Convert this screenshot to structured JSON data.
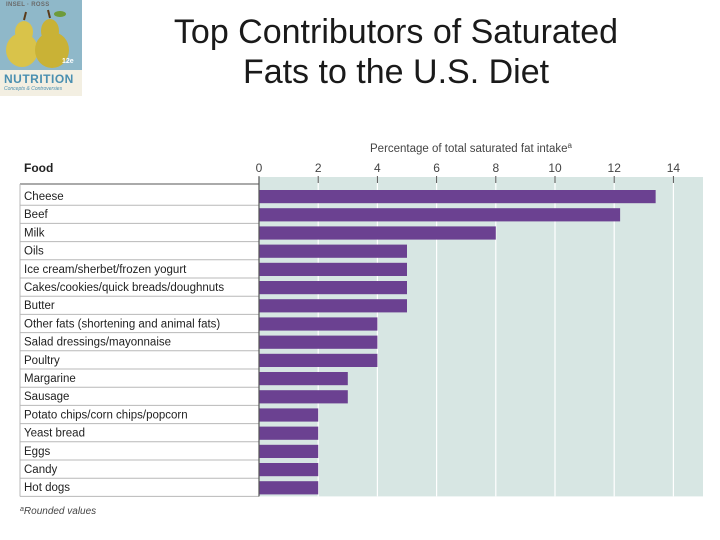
{
  "slide": {
    "title_line1": "Top Contributors of Saturated",
    "title_line2": "Fats to the U.S. Diet"
  },
  "logo": {
    "top_text": "INSEL · ROSS",
    "edition": "12e",
    "title": "NUTRITION",
    "subtitle": "Concepts & Controversies"
  },
  "colors": {
    "bar": "#6b4191",
    "panel": "#d7e6e3",
    "grid": "#ffffff",
    "row_line": "#b8b8b8",
    "text": "#222222"
  },
  "chart_data": {
    "type": "bar",
    "orientation": "horizontal",
    "food_header": "Food",
    "xlabel": "Percentage of total saturated fat intake",
    "xlabel_footnote_mark": "a",
    "xlim": [
      0,
      14.5
    ],
    "xticks": [
      0,
      2,
      4,
      6,
      8,
      10,
      12,
      14
    ],
    "grid": true,
    "categories": [
      "Cheese",
      "Beef",
      "Milk",
      "Oils",
      "Ice cream/sherbet/frozen yogurt",
      "Cakes/cookies/quick breads/doughnuts",
      "Butter",
      "Other fats (shortening and animal fats)",
      "Salad dressings/mayonnaise",
      "Poultry",
      "Margarine",
      "Sausage",
      "Potato chips/corn chips/popcorn",
      "Yeast bread",
      "Eggs",
      "Candy",
      "Hot dogs"
    ],
    "values": [
      13.4,
      12.2,
      8.0,
      5.0,
      5.0,
      5.0,
      5.0,
      4.0,
      4.0,
      4.0,
      3.0,
      3.0,
      2.0,
      2.0,
      2.0,
      2.0,
      2.0
    ],
    "footnote_mark": "a",
    "footnote": "Rounded values"
  }
}
